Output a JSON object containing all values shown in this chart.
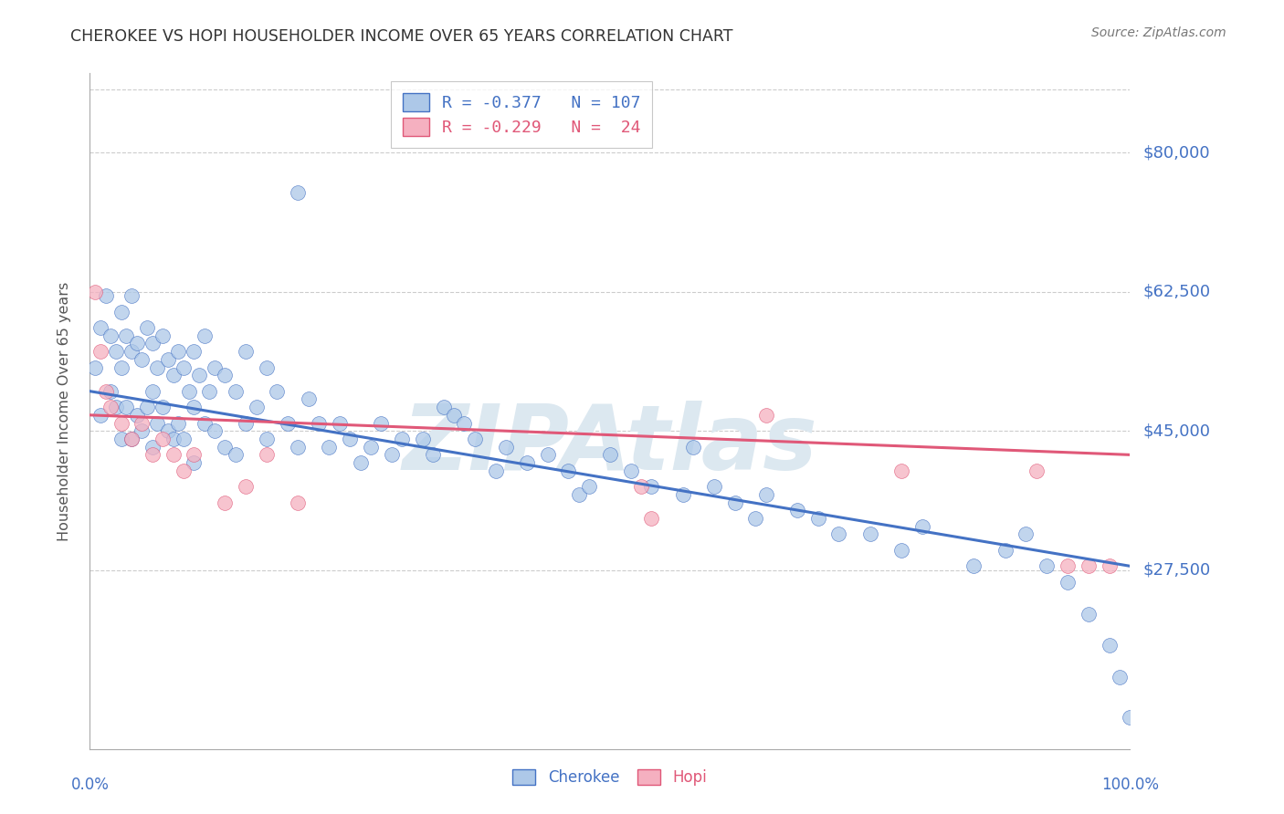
{
  "title": "CHEROKEE VS HOPI HOUSEHOLDER INCOME OVER 65 YEARS CORRELATION CHART",
  "source": "Source: ZipAtlas.com",
  "ylabel": "Householder Income Over 65 years",
  "ylim": [
    5000,
    90000
  ],
  "xlim": [
    0.0,
    1.0
  ],
  "cherokee_R": -0.377,
  "cherokee_N": 107,
  "hopi_R": -0.229,
  "hopi_N": 24,
  "cherokee_color": "#adc8e8",
  "hopi_color": "#f5b0c0",
  "cherokee_line_color": "#4472c4",
  "hopi_line_color": "#e05878",
  "watermark": "ZIPAtlas",
  "watermark_color": "#dce8f0",
  "background_color": "#ffffff",
  "grid_color": "#cccccc",
  "title_color": "#333333",
  "label_color": "#4472c4",
  "ytick_vals": [
    27500,
    45000,
    62500,
    80000
  ],
  "ytick_labels": [
    "$27,500",
    "$45,000",
    "$62,500",
    "$80,000"
  ],
  "cherokee_line_y0": 50000,
  "cherokee_line_y1": 28000,
  "hopi_line_y0": 47000,
  "hopi_line_y1": 42000,
  "cherokee_x": [
    0.005,
    0.01,
    0.01,
    0.015,
    0.02,
    0.02,
    0.025,
    0.025,
    0.03,
    0.03,
    0.03,
    0.035,
    0.035,
    0.04,
    0.04,
    0.04,
    0.045,
    0.045,
    0.05,
    0.05,
    0.055,
    0.055,
    0.06,
    0.06,
    0.06,
    0.065,
    0.065,
    0.07,
    0.07,
    0.075,
    0.075,
    0.08,
    0.08,
    0.085,
    0.085,
    0.09,
    0.09,
    0.095,
    0.1,
    0.1,
    0.1,
    0.105,
    0.11,
    0.11,
    0.115,
    0.12,
    0.12,
    0.13,
    0.13,
    0.14,
    0.14,
    0.15,
    0.15,
    0.16,
    0.17,
    0.17,
    0.18,
    0.19,
    0.2,
    0.2,
    0.21,
    0.22,
    0.23,
    0.24,
    0.25,
    0.26,
    0.27,
    0.28,
    0.29,
    0.3,
    0.32,
    0.33,
    0.34,
    0.35,
    0.36,
    0.37,
    0.39,
    0.4,
    0.42,
    0.44,
    0.46,
    0.47,
    0.48,
    0.5,
    0.52,
    0.54,
    0.57,
    0.58,
    0.6,
    0.62,
    0.64,
    0.65,
    0.68,
    0.7,
    0.72,
    0.75,
    0.78,
    0.8,
    0.85,
    0.88,
    0.9,
    0.92,
    0.94,
    0.96,
    0.98,
    0.99,
    1.0
  ],
  "cherokee_y": [
    53000,
    58000,
    47000,
    62000,
    57000,
    50000,
    55000,
    48000,
    60000,
    53000,
    44000,
    57000,
    48000,
    62000,
    55000,
    44000,
    56000,
    47000,
    54000,
    45000,
    58000,
    48000,
    56000,
    50000,
    43000,
    53000,
    46000,
    57000,
    48000,
    54000,
    45000,
    52000,
    44000,
    55000,
    46000,
    53000,
    44000,
    50000,
    55000,
    48000,
    41000,
    52000,
    57000,
    46000,
    50000,
    53000,
    45000,
    52000,
    43000,
    50000,
    42000,
    55000,
    46000,
    48000,
    53000,
    44000,
    50000,
    46000,
    75000,
    43000,
    49000,
    46000,
    43000,
    46000,
    44000,
    41000,
    43000,
    46000,
    42000,
    44000,
    44000,
    42000,
    48000,
    47000,
    46000,
    44000,
    40000,
    43000,
    41000,
    42000,
    40000,
    37000,
    38000,
    42000,
    40000,
    38000,
    37000,
    43000,
    38000,
    36000,
    34000,
    37000,
    35000,
    34000,
    32000,
    32000,
    30000,
    33000,
    28000,
    30000,
    32000,
    28000,
    26000,
    22000,
    18000,
    14000,
    9000
  ],
  "hopi_x": [
    0.005,
    0.01,
    0.015,
    0.02,
    0.03,
    0.04,
    0.05,
    0.06,
    0.07,
    0.08,
    0.09,
    0.1,
    0.13,
    0.15,
    0.17,
    0.2,
    0.53,
    0.54,
    0.65,
    0.78,
    0.91,
    0.94,
    0.96,
    0.98
  ],
  "hopi_y": [
    62500,
    55000,
    50000,
    48000,
    46000,
    44000,
    46000,
    42000,
    44000,
    42000,
    40000,
    42000,
    36000,
    38000,
    42000,
    36000,
    38000,
    34000,
    47000,
    40000,
    40000,
    28000,
    28000,
    28000
  ]
}
